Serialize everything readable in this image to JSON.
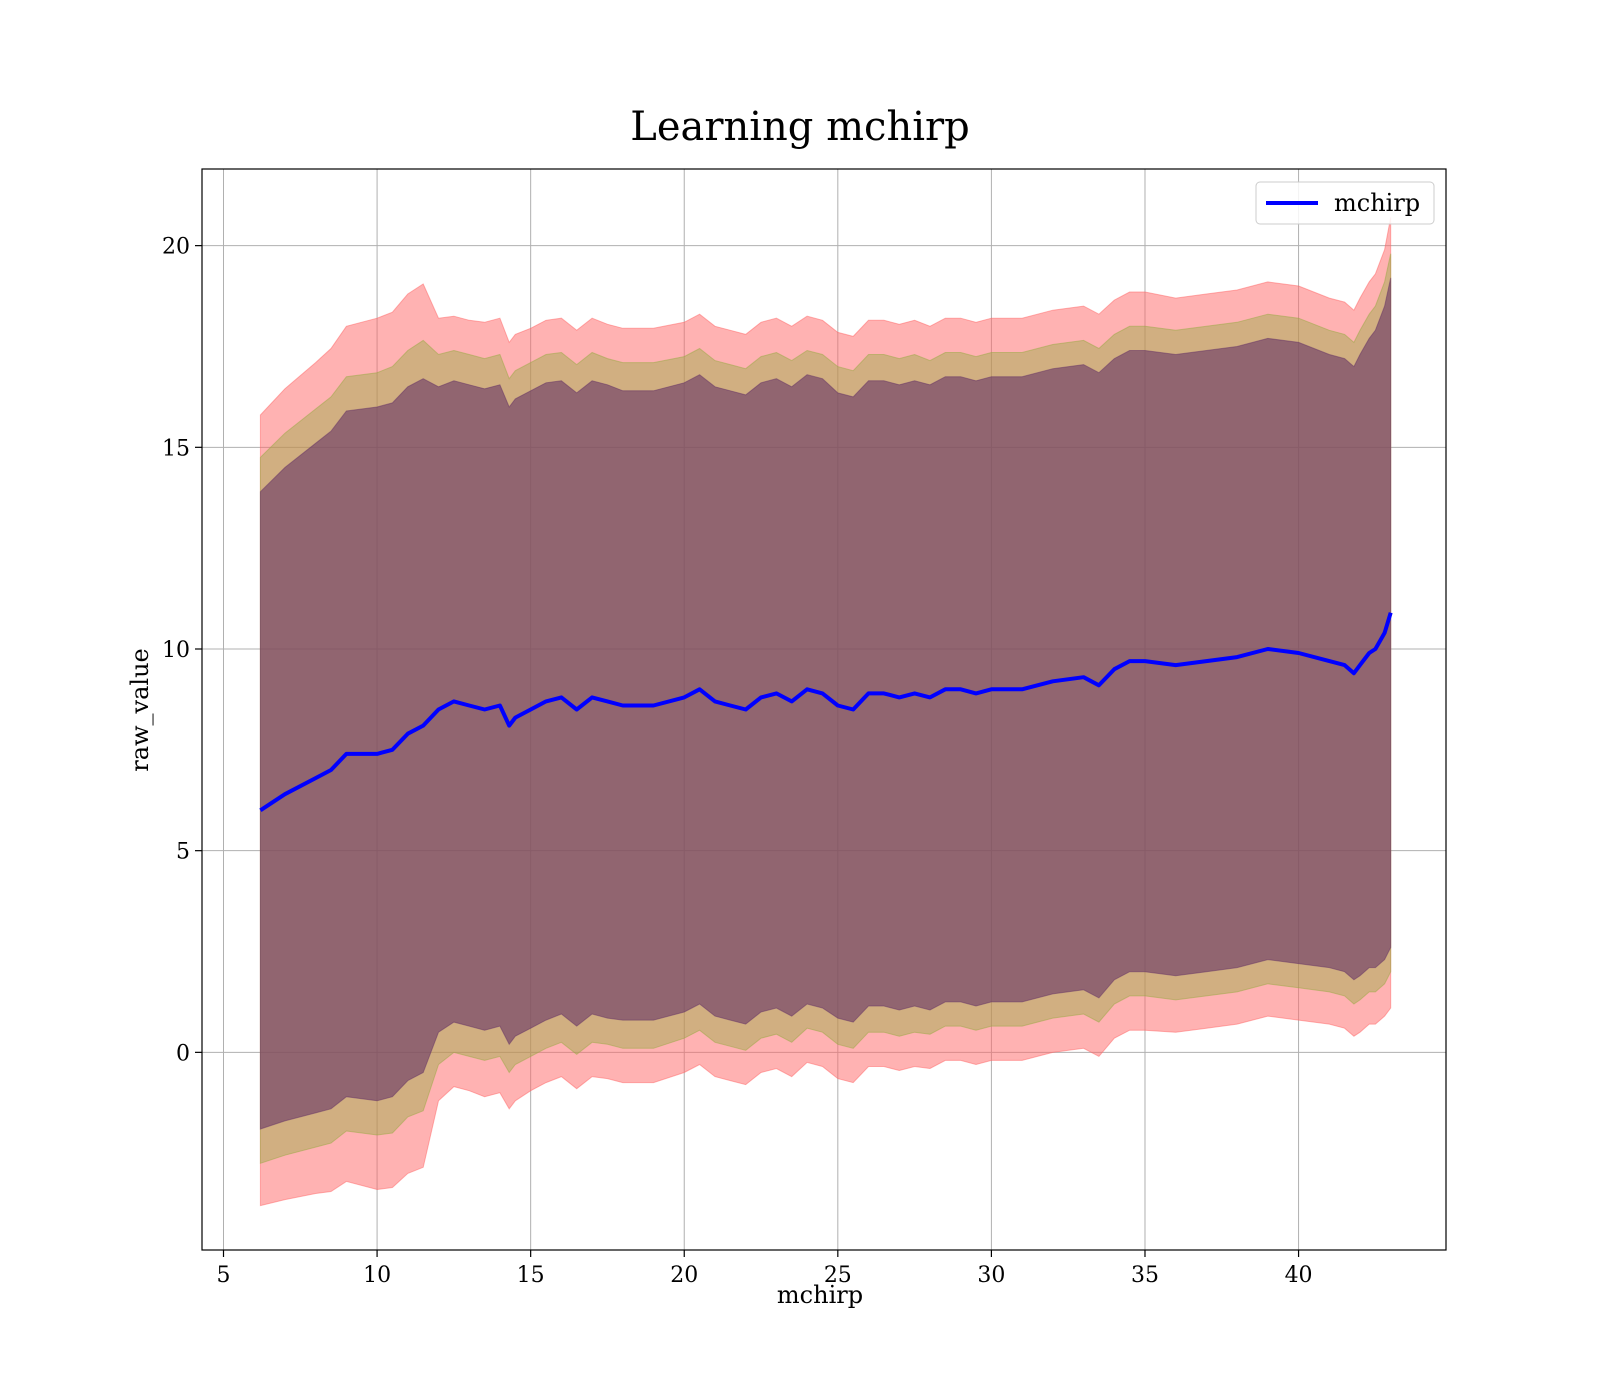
{
  "chart_data": {
    "type": "area",
    "title": "Learning mchirp",
    "xlabel": "mchirp",
    "ylabel": "raw_value",
    "xlim": [
      4.3,
      44.8
    ],
    "ylim": [
      -4.9,
      21.9
    ],
    "xticks": [
      5,
      10,
      15,
      20,
      25,
      30,
      35,
      40
    ],
    "yticks": [
      0,
      5,
      10,
      15,
      20
    ],
    "grid": true,
    "legend": {
      "position": "top-right",
      "entries": [
        "mchirp"
      ]
    },
    "x": [
      6.2,
      7.0,
      8.0,
      8.5,
      9.0,
      10.0,
      10.5,
      11.0,
      11.5,
      12.0,
      12.5,
      13.0,
      13.5,
      14.0,
      14.3,
      14.5,
      15.0,
      15.5,
      16.0,
      16.5,
      17.0,
      17.5,
      18.0,
      19.0,
      20.0,
      20.5,
      21.0,
      21.5,
      22.0,
      22.5,
      23.0,
      23.5,
      24.0,
      24.5,
      25.0,
      25.5,
      26.0,
      26.5,
      27.0,
      27.5,
      28.0,
      28.5,
      29.0,
      29.5,
      30.0,
      31.0,
      32.0,
      33.0,
      33.5,
      34.0,
      34.5,
      35.0,
      36.0,
      37.0,
      38.0,
      39.0,
      40.0,
      41.0,
      41.5,
      41.8,
      42.0,
      42.3,
      42.5,
      42.8,
      43.0
    ],
    "series": [
      {
        "name": "mchirp",
        "color": "#0000ff",
        "values": [
          6.0,
          6.4,
          6.8,
          7.0,
          7.4,
          7.4,
          7.5,
          7.9,
          8.1,
          8.5,
          8.7,
          8.6,
          8.5,
          8.6,
          8.1,
          8.3,
          8.5,
          8.7,
          8.8,
          8.5,
          8.8,
          8.7,
          8.6,
          8.6,
          8.8,
          9.0,
          8.7,
          8.6,
          8.5,
          8.8,
          8.9,
          8.7,
          9.0,
          8.9,
          8.6,
          8.5,
          8.9,
          8.9,
          8.8,
          8.9,
          8.8,
          9.0,
          9.0,
          8.9,
          9.0,
          9.0,
          9.2,
          9.3,
          9.1,
          9.5,
          9.7,
          9.7,
          9.6,
          9.7,
          9.8,
          10.0,
          9.9,
          9.7,
          9.6,
          9.4,
          9.6,
          9.9,
          10.0,
          10.4,
          10.9
        ]
      }
    ],
    "bands": [
      {
        "sigma": 3,
        "color": "#ff6666",
        "opacity": 0.5,
        "half_width": [
          9.8,
          10.05,
          10.3,
          10.45,
          10.6,
          10.8,
          10.85,
          10.9,
          10.95,
          9.7,
          9.55,
          9.55,
          9.6,
          9.6,
          9.5,
          9.5,
          9.45,
          9.45,
          9.4,
          9.4,
          9.4,
          9.35,
          9.35,
          9.35,
          9.3,
          9.3,
          9.3,
          9.3,
          9.3,
          9.3,
          9.3,
          9.3,
          9.25,
          9.25,
          9.25,
          9.25,
          9.25,
          9.25,
          9.25,
          9.25,
          9.2,
          9.2,
          9.2,
          9.2,
          9.2,
          9.2,
          9.2,
          9.2,
          9.2,
          9.15,
          9.15,
          9.15,
          9.1,
          9.1,
          9.1,
          9.1,
          9.1,
          9.0,
          9.0,
          9.0,
          9.1,
          9.2,
          9.3,
          9.5,
          9.8
        ]
      },
      {
        "sigma": 2,
        "color": "#99aa44",
        "opacity": 0.45,
        "half_width": [
          8.75,
          8.95,
          9.15,
          9.25,
          9.35,
          9.45,
          9.5,
          9.5,
          9.55,
          8.8,
          8.7,
          8.7,
          8.7,
          8.7,
          8.6,
          8.6,
          8.6,
          8.6,
          8.55,
          8.55,
          8.55,
          8.5,
          8.5,
          8.5,
          8.45,
          8.45,
          8.45,
          8.45,
          8.45,
          8.45,
          8.45,
          8.45,
          8.4,
          8.4,
          8.4,
          8.4,
          8.4,
          8.4,
          8.4,
          8.4,
          8.35,
          8.35,
          8.35,
          8.35,
          8.35,
          8.35,
          8.35,
          8.35,
          8.35,
          8.3,
          8.3,
          8.3,
          8.3,
          8.3,
          8.3,
          8.3,
          8.3,
          8.2,
          8.2,
          8.2,
          8.3,
          8.4,
          8.5,
          8.7,
          8.9
        ]
      },
      {
        "sigma": 1,
        "color": "#663366",
        "opacity": 0.6,
        "half_width": [
          7.9,
          8.1,
          8.3,
          8.4,
          8.5,
          8.6,
          8.6,
          8.6,
          8.6,
          8.0,
          7.95,
          7.95,
          7.95,
          7.95,
          7.9,
          7.9,
          7.9,
          7.9,
          7.85,
          7.85,
          7.85,
          7.85,
          7.8,
          7.8,
          7.8,
          7.8,
          7.8,
          7.8,
          7.8,
          7.8,
          7.8,
          7.8,
          7.8,
          7.8,
          7.75,
          7.75,
          7.75,
          7.75,
          7.75,
          7.75,
          7.75,
          7.75,
          7.75,
          7.75,
          7.75,
          7.75,
          7.75,
          7.75,
          7.75,
          7.7,
          7.7,
          7.7,
          7.7,
          7.7,
          7.7,
          7.7,
          7.7,
          7.6,
          7.6,
          7.6,
          7.7,
          7.8,
          7.9,
          8.1,
          8.3
        ]
      }
    ]
  }
}
